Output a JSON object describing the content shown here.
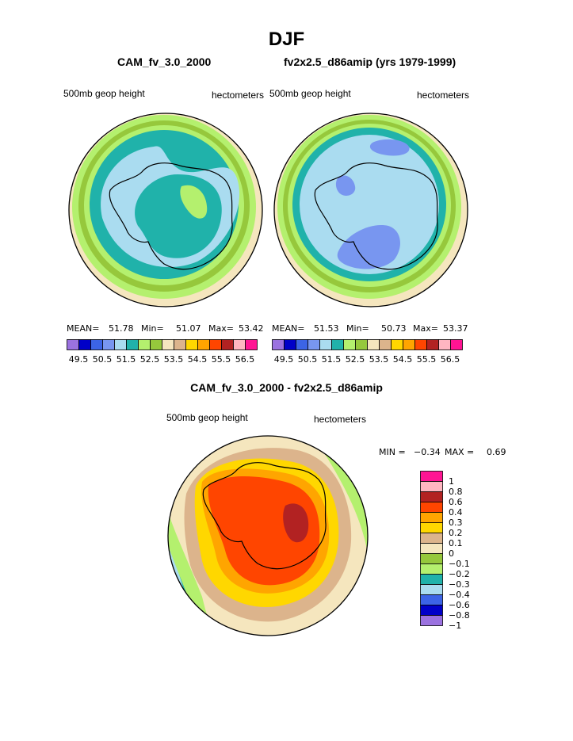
{
  "page": {
    "title": "DJF",
    "left_model": "CAM_fv_3.0_2000",
    "right_model": "fv2x2.5_d86amip (yrs 1979-1999)",
    "diff_title": "CAM_fv_3.0_2000 - fv2x2.5_d86amip"
  },
  "chart_data": [
    {
      "type": "heatmap",
      "projection": "south-polar-stereographic",
      "title": "CAM_fv_3.0_2000",
      "variable": "500mb geop height",
      "units": "hectometers",
      "stats": {
        "mean_label": "MEAN=",
        "mean": "51.78",
        "min_label": "Min=",
        "min": "51.07",
        "max_label": "Max=",
        "max": "53.42"
      },
      "colorbar": {
        "colors": [
          "#9b72e0",
          "#0000c8",
          "#3c64e6",
          "#7896f0",
          "#aadcf0",
          "#20b2aa",
          "#b4f06e",
          "#96c83c",
          "#f5e6be",
          "#dcb48c",
          "#ffd700",
          "#ffa500",
          "#ff4500",
          "#b22222",
          "#ffb6c1",
          "#ff1493"
        ],
        "tick_labels": [
          "49.5",
          "50.5",
          "51.5",
          "52.5",
          "53.5",
          "54.5",
          "55.5",
          "56.5"
        ]
      }
    },
    {
      "type": "heatmap",
      "projection": "south-polar-stereographic",
      "title": "fv2x2.5_d86amip (yrs 1979-1999)",
      "variable": "500mb geop height",
      "units": "hectometers",
      "stats": {
        "mean_label": "MEAN=",
        "mean": "51.53",
        "min_label": "Min=",
        "min": "50.73",
        "max_label": "Max=",
        "max": "53.37"
      },
      "colorbar": {
        "colors": [
          "#9b72e0",
          "#0000c8",
          "#3c64e6",
          "#7896f0",
          "#aadcf0",
          "#20b2aa",
          "#b4f06e",
          "#96c83c",
          "#f5e6be",
          "#dcb48c",
          "#ffd700",
          "#ffa500",
          "#ff4500",
          "#b22222",
          "#ffb6c1",
          "#ff1493"
        ],
        "tick_labels": [
          "49.5",
          "50.5",
          "51.5",
          "52.5",
          "53.5",
          "54.5",
          "55.5",
          "56.5"
        ]
      }
    },
    {
      "type": "heatmap",
      "projection": "south-polar-stereographic",
      "title": "CAM_fv_3.0_2000 - fv2x2.5_d86amip",
      "variable": "500mb geop height",
      "units": "hectometers",
      "stats": {
        "min_label": "MIN =",
        "min": "−0.34",
        "max_label": "MAX =",
        "max": "0.69"
      },
      "colorbar": {
        "orientation": "vertical",
        "colors": [
          "#ff1493",
          "#ffb6c1",
          "#b22222",
          "#ff4500",
          "#ffa500",
          "#ffd700",
          "#dcb48c",
          "#f5e6be",
          "#96c83c",
          "#b4f06e",
          "#20b2aa",
          "#aadcf0",
          "#3c64e6",
          "#0000c8",
          "#9b72e0"
        ],
        "tick_labels": [
          "1",
          "0.8",
          "0.6",
          "0.4",
          "0.3",
          "0.2",
          "0.1",
          "0",
          "−0.1",
          "−0.2",
          "−0.3",
          "−0.4",
          "−0.6",
          "−0.8",
          "−1"
        ]
      }
    }
  ]
}
